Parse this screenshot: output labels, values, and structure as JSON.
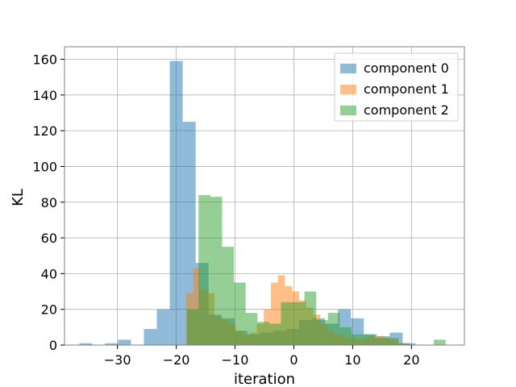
{
  "chart_data": {
    "type": "histogram",
    "xlabel": "iteration",
    "ylabel": "KL",
    "xlim": [
      -39,
      29
    ],
    "ylim": [
      0,
      167
    ],
    "xticks": [
      -30,
      -20,
      -10,
      0,
      10,
      20
    ],
    "yticks": [
      0,
      20,
      40,
      60,
      80,
      100,
      120,
      140,
      160
    ],
    "grid": true,
    "legend_position": "top-right",
    "series": [
      {
        "name": "component 0",
        "color": "#1f77b4",
        "bins": [
          {
            "x0": -36.5,
            "x1": -34.3,
            "count": 1
          },
          {
            "x0": -32.1,
            "x1": -29.9,
            "count": 1
          },
          {
            "x0": -29.9,
            "x1": -27.7,
            "count": 3
          },
          {
            "x0": -25.5,
            "x1": -23.3,
            "count": 9
          },
          {
            "x0": -23.3,
            "x1": -21.1,
            "count": 20
          },
          {
            "x0": -21.1,
            "x1": -18.9,
            "count": 159
          },
          {
            "x0": -18.9,
            "x1": -16.7,
            "count": 125
          },
          {
            "x0": -16.7,
            "x1": -14.5,
            "count": 46
          },
          {
            "x0": -14.5,
            "x1": -12.3,
            "count": 17
          },
          {
            "x0": -12.3,
            "x1": -10.1,
            "count": 15
          },
          {
            "x0": -10.1,
            "x1": -7.9,
            "count": 8
          },
          {
            "x0": -7.9,
            "x1": -5.7,
            "count": 6
          },
          {
            "x0": -5.7,
            "x1": -3.5,
            "count": 7
          },
          {
            "x0": -3.5,
            "x1": -1.3,
            "count": 8
          },
          {
            "x0": -1.3,
            "x1": 0.9,
            "count": 9
          },
          {
            "x0": 0.9,
            "x1": 3.1,
            "count": 14
          },
          {
            "x0": 3.1,
            "x1": 5.3,
            "count": 15
          },
          {
            "x0": 5.3,
            "x1": 7.5,
            "count": 12
          },
          {
            "x0": 7.5,
            "x1": 9.7,
            "count": 20
          },
          {
            "x0": 9.7,
            "x1": 11.9,
            "count": 15
          },
          {
            "x0": 11.9,
            "x1": 14.1,
            "count": 6
          },
          {
            "x0": 14.1,
            "x1": 16.3,
            "count": 5
          },
          {
            "x0": 16.3,
            "x1": 18.5,
            "count": 7
          },
          {
            "x0": 18.5,
            "x1": 20.7,
            "count": 1
          }
        ]
      },
      {
        "name": "component 1",
        "color": "#ff7f0e",
        "bins": [
          {
            "x0": -18.3,
            "x1": -17.1,
            "count": 29
          },
          {
            "x0": -17.1,
            "x1": -15.9,
            "count": 43
          },
          {
            "x0": -15.9,
            "x1": -14.7,
            "count": 31
          },
          {
            "x0": -14.7,
            "x1": -13.5,
            "count": 29
          },
          {
            "x0": -13.5,
            "x1": -12.3,
            "count": 16
          },
          {
            "x0": -12.3,
            "x1": -11.1,
            "count": 14
          },
          {
            "x0": -11.1,
            "x1": -9.9,
            "count": 12
          },
          {
            "x0": -9.9,
            "x1": -8.7,
            "count": 8
          },
          {
            "x0": -8.7,
            "x1": -7.5,
            "count": 6
          },
          {
            "x0": -7.5,
            "x1": -6.3,
            "count": 7
          },
          {
            "x0": -6.3,
            "x1": -5.1,
            "count": 12
          },
          {
            "x0": -5.1,
            "x1": -3.9,
            "count": 20
          },
          {
            "x0": -3.9,
            "x1": -2.7,
            "count": 35
          },
          {
            "x0": -2.7,
            "x1": -1.5,
            "count": 39
          },
          {
            "x0": -1.5,
            "x1": -0.3,
            "count": 33
          },
          {
            "x0": -0.3,
            "x1": 0.9,
            "count": 30
          },
          {
            "x0": 0.9,
            "x1": 2.1,
            "count": 25
          },
          {
            "x0": 2.1,
            "x1": 3.3,
            "count": 21
          },
          {
            "x0": 3.3,
            "x1": 4.5,
            "count": 17
          },
          {
            "x0": 4.5,
            "x1": 5.7,
            "count": 12
          },
          {
            "x0": 5.7,
            "x1": 6.9,
            "count": 8
          },
          {
            "x0": 6.9,
            "x1": 8.1,
            "count": 6
          },
          {
            "x0": 8.1,
            "x1": 9.3,
            "count": 5
          },
          {
            "x0": 9.3,
            "x1": 10.5,
            "count": 4
          },
          {
            "x0": 10.5,
            "x1": 11.7,
            "count": 3
          },
          {
            "x0": 11.7,
            "x1": 12.9,
            "count": 4
          },
          {
            "x0": 12.9,
            "x1": 14.1,
            "count": 5
          },
          {
            "x0": 14.1,
            "x1": 15.3,
            "count": 5
          },
          {
            "x0": 15.3,
            "x1": 16.5,
            "count": 4
          },
          {
            "x0": 16.5,
            "x1": 17.7,
            "count": 3
          },
          {
            "x0": 17.7,
            "x1": 18.9,
            "count": 1
          }
        ]
      },
      {
        "name": "component 2",
        "color": "#2ca02c",
        "bins": [
          {
            "x0": -18.2,
            "x1": -16.2,
            "count": 20
          },
          {
            "x0": -16.2,
            "x1": -14.2,
            "count": 84
          },
          {
            "x0": -14.2,
            "x1": -12.2,
            "count": 83
          },
          {
            "x0": -12.2,
            "x1": -10.2,
            "count": 55
          },
          {
            "x0": -10.2,
            "x1": -8.2,
            "count": 35
          },
          {
            "x0": -8.2,
            "x1": -6.2,
            "count": 18
          },
          {
            "x0": -6.2,
            "x1": -4.2,
            "count": 13
          },
          {
            "x0": -4.2,
            "x1": -2.2,
            "count": 12
          },
          {
            "x0": -2.2,
            "x1": -0.2,
            "count": 24
          },
          {
            "x0": -0.2,
            "x1": 1.8,
            "count": 24
          },
          {
            "x0": 1.8,
            "x1": 3.8,
            "count": 30
          },
          {
            "x0": 3.8,
            "x1": 5.8,
            "count": 14
          },
          {
            "x0": 5.8,
            "x1": 7.8,
            "count": 18
          },
          {
            "x0": 7.8,
            "x1": 9.8,
            "count": 10
          },
          {
            "x0": 9.8,
            "x1": 11.8,
            "count": 6
          },
          {
            "x0": 11.8,
            "x1": 13.8,
            "count": 6
          },
          {
            "x0": 13.8,
            "x1": 15.8,
            "count": 4
          },
          {
            "x0": 15.8,
            "x1": 17.8,
            "count": 4
          },
          {
            "x0": 17.8,
            "x1": 19.8,
            "count": 1
          },
          {
            "x0": 23.8,
            "x1": 25.8,
            "count": 3
          }
        ]
      }
    ]
  }
}
